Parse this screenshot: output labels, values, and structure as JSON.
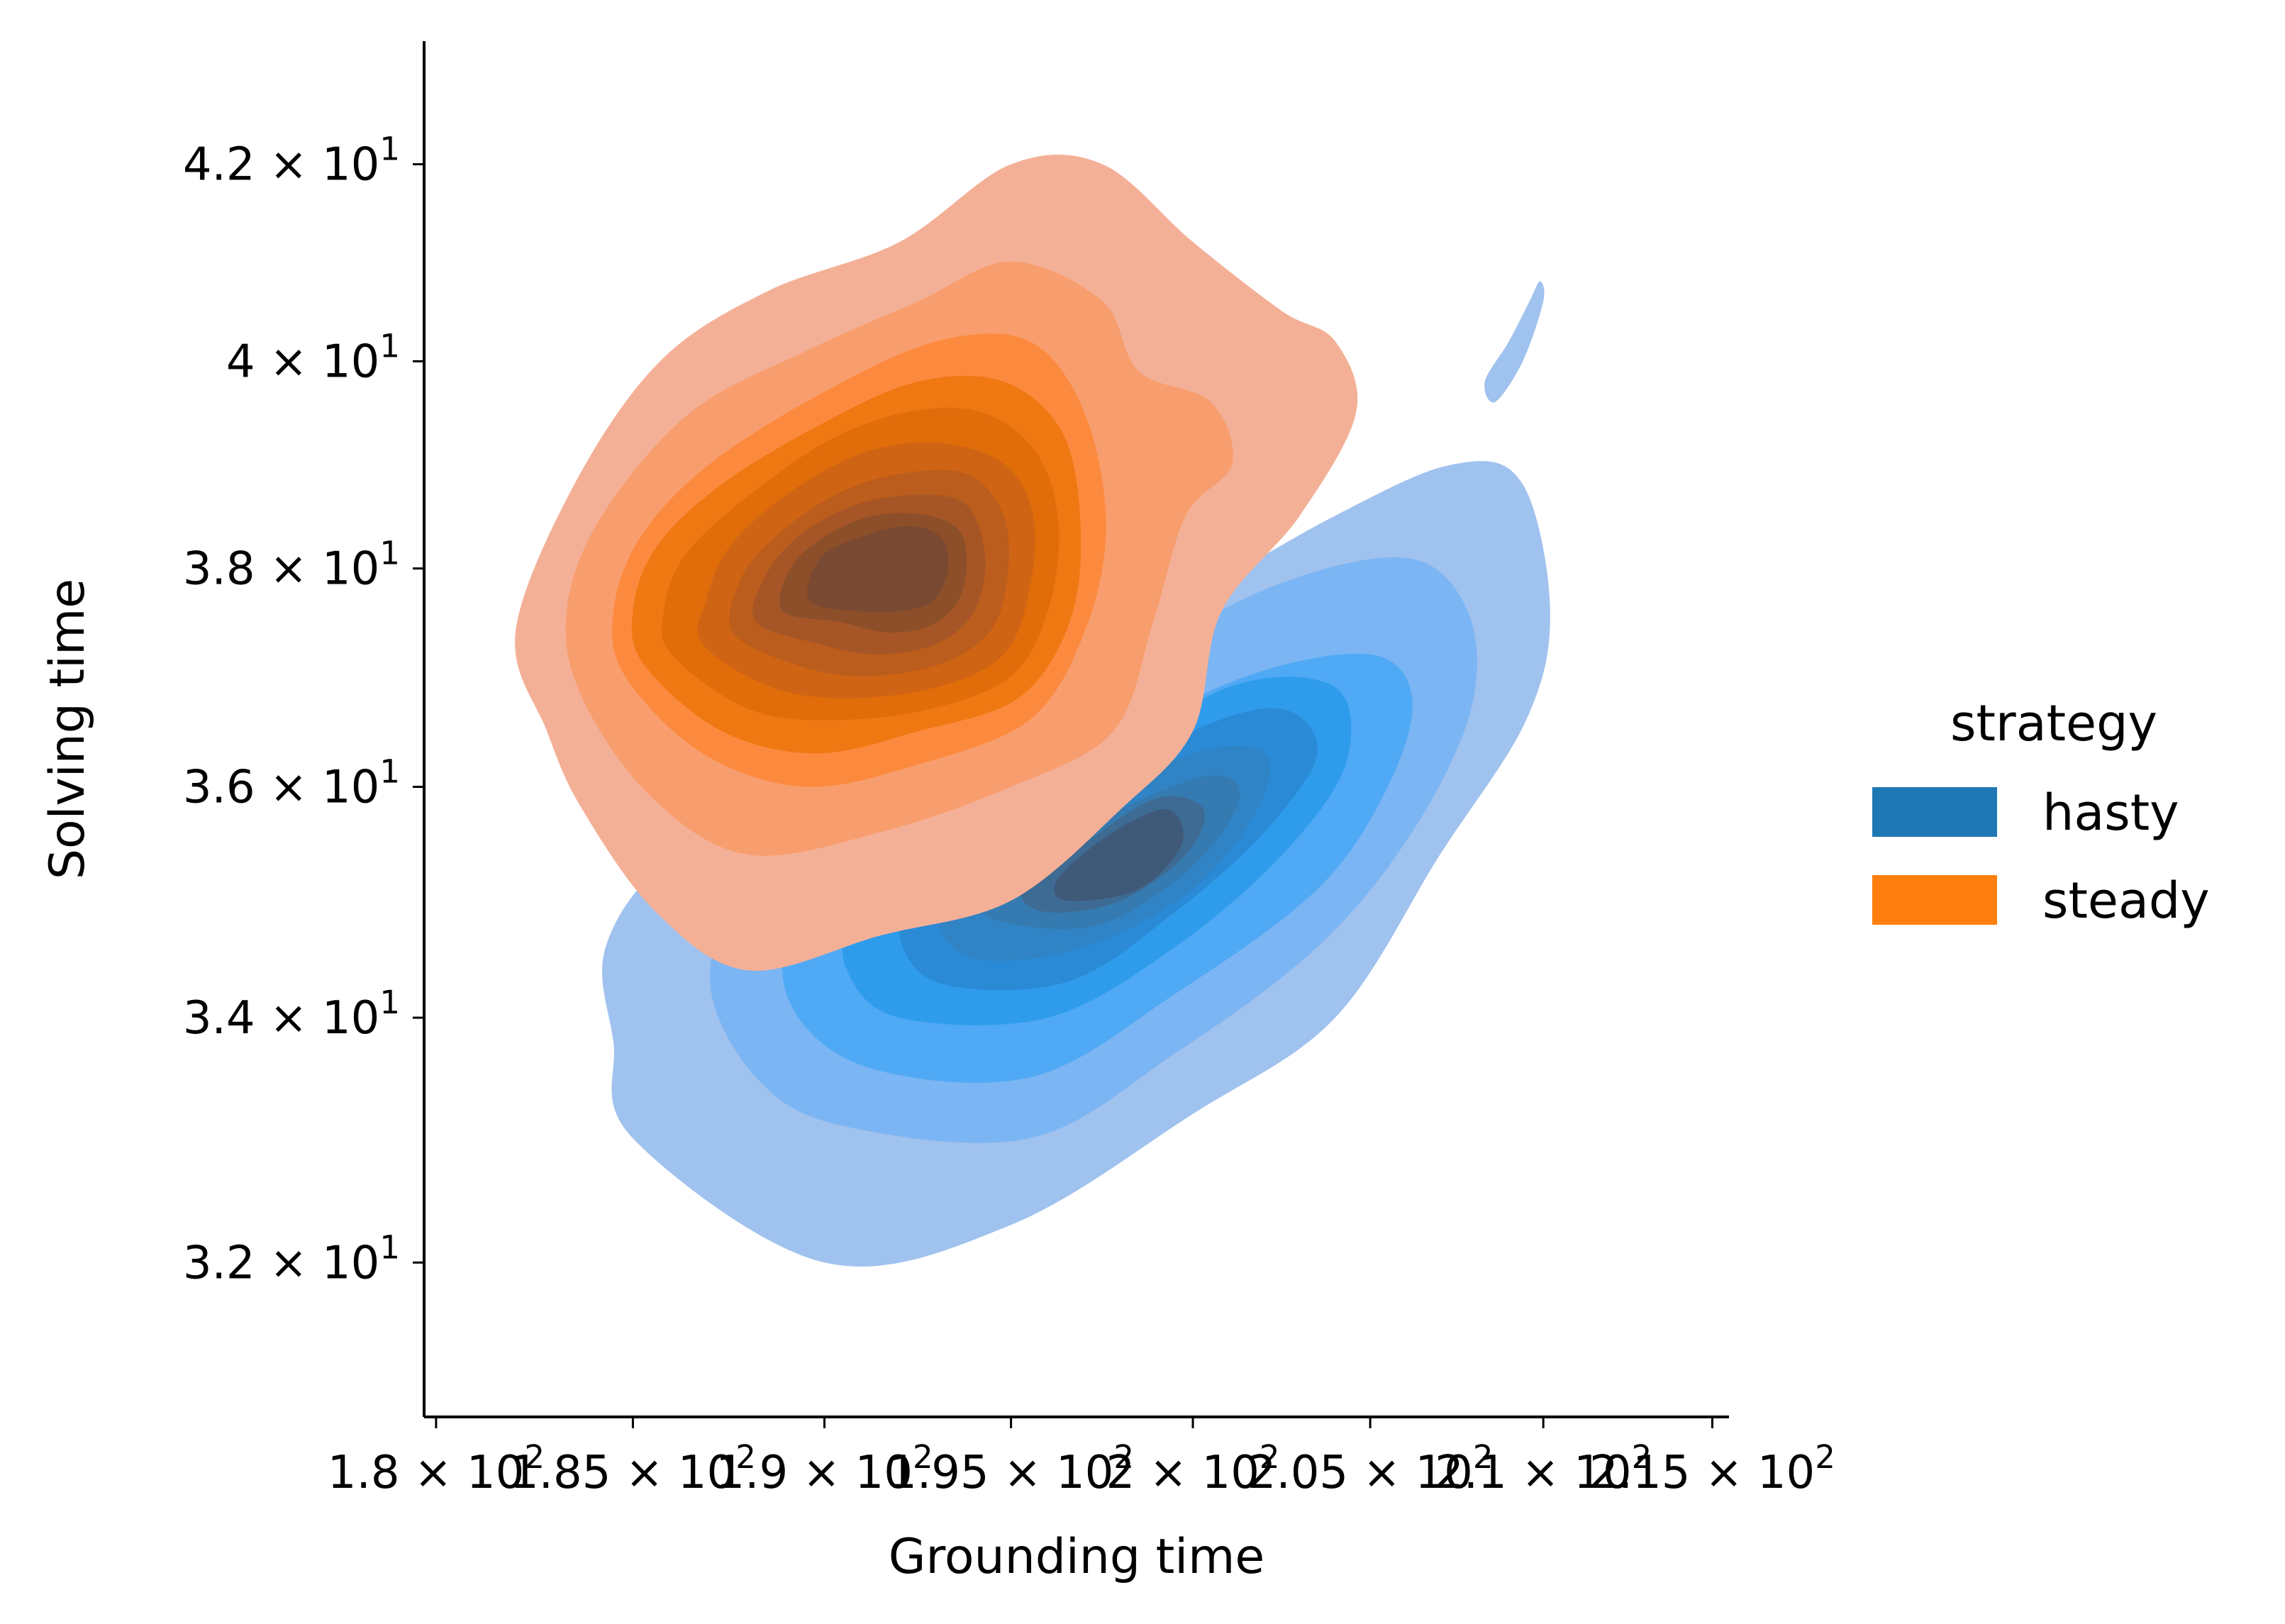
{
  "chart_data": {
    "type": "kde-contour",
    "title": "",
    "xlabel": "Grounding time",
    "ylabel": "Solving time",
    "x_scale": "log",
    "y_scale": "log",
    "xlim": [
      179.7,
      215.5
    ],
    "ylim": [
      30.8,
      43.3
    ],
    "x_ticks": [
      180,
      185,
      190,
      195,
      200,
      205,
      210,
      215
    ],
    "x_tick_labels": [
      {
        "mantissa": "1.8",
        "exponent": "2"
      },
      {
        "mantissa": "1.85",
        "exponent": "2"
      },
      {
        "mantissa": "1.9",
        "exponent": "2"
      },
      {
        "mantissa": "1.95",
        "exponent": "2"
      },
      {
        "mantissa": "2",
        "exponent": "2"
      },
      {
        "mantissa": "2.05",
        "exponent": "2"
      },
      {
        "mantissa": "2.1",
        "exponent": "2"
      },
      {
        "mantissa": "2.15",
        "exponent": "2"
      }
    ],
    "y_ticks": [
      32,
      34,
      36,
      38,
      40,
      42
    ],
    "y_tick_labels": [
      {
        "mantissa": "3.2",
        "exponent": "1"
      },
      {
        "mantissa": "3.4",
        "exponent": "1"
      },
      {
        "mantissa": "3.6",
        "exponent": "1"
      },
      {
        "mantissa": "3.8",
        "exponent": "1"
      },
      {
        "mantissa": "4",
        "exponent": "1"
      },
      {
        "mantissa": "4.2",
        "exponent": "1"
      }
    ],
    "times_symbol": "×",
    "tick_base": "10",
    "legend": {
      "title": "strategy",
      "placement": "right"
    },
    "series": [
      {
        "name": "hasty",
        "color": "#1f77b4",
        "fill_colors": [
          "#a0c2ee",
          "#7cb5f3",
          "#50a9f5",
          "#2e9ceb",
          "#2b8ad5",
          "#3083c4",
          "#357bb1",
          "#3e6b93",
          "#3f5979"
        ],
        "center": [
          197.5,
          35.3
        ],
        "contours": [
          [
            [
              185.0,
              33.0
            ],
            [
              190.0,
              32.0
            ],
            [
              195.0,
              32.3
            ],
            [
              200.0,
              33.2
            ],
            [
              204.0,
              34.0
            ],
            [
              207.0,
              35.4
            ],
            [
              209.5,
              36.6
            ],
            [
              210.2,
              37.6
            ],
            [
              209.4,
              38.8
            ],
            [
              207.5,
              39.0
            ],
            [
              204.0,
              38.5
            ],
            [
              197.0,
              37.2
            ],
            [
              190.0,
              36.3
            ],
            [
              186.0,
              35.4
            ],
            [
              184.3,
              34.6
            ],
            [
              184.5,
              33.8
            ]
          ],
          [
            [
              190.5,
              33.1
            ],
            [
              195.5,
              33.0
            ],
            [
              199.5,
              33.7
            ],
            [
              203.5,
              34.6
            ],
            [
              206.2,
              35.6
            ],
            [
              207.9,
              36.7
            ],
            [
              207.8,
              37.6
            ],
            [
              206.0,
              38.1
            ],
            [
              202.0,
              37.8
            ],
            [
              197.0,
              36.9
            ],
            [
              192.0,
              36.1
            ],
            [
              188.0,
              35.1
            ],
            [
              187.0,
              34.3
            ],
            [
              188.2,
              33.5
            ]
          ],
          [
            [
              191.0,
              33.6
            ],
            [
              195.5,
              33.5
            ],
            [
              199.5,
              34.2
            ],
            [
              203.5,
              35.1
            ],
            [
              205.5,
              36.0
            ],
            [
              206.2,
              36.8
            ],
            [
              205.0,
              37.2
            ],
            [
              201.5,
              37.0
            ],
            [
              197.0,
              36.3
            ],
            [
              192.5,
              35.6
            ],
            [
              189.5,
              35.0
            ],
            [
              189.0,
              34.2
            ]
          ],
          [
            [
              192.0,
              34.0
            ],
            [
              196.0,
              34.0
            ],
            [
              199.5,
              34.6
            ],
            [
              202.5,
              35.4
            ],
            [
              204.3,
              36.2
            ],
            [
              204.0,
              36.9
            ],
            [
              201.0,
              36.9
            ],
            [
              197.0,
              36.1
            ],
            [
              193.0,
              35.5
            ],
            [
              190.8,
              34.9
            ],
            [
              190.6,
              34.4
            ]
          ],
          [
            [
              193.0,
              34.3
            ],
            [
              196.5,
              34.3
            ],
            [
              199.5,
              34.9
            ],
            [
              202.0,
              35.6
            ],
            [
              203.5,
              36.3
            ],
            [
              202.5,
              36.7
            ],
            [
              200.0,
              36.5
            ],
            [
              196.5,
              35.8
            ],
            [
              193.5,
              35.2
            ],
            [
              192.0,
              34.8
            ]
          ],
          [
            [
              194.0,
              34.5
            ],
            [
              197.0,
              34.6
            ],
            [
              200.0,
              35.1
            ],
            [
              201.8,
              35.8
            ],
            [
              202.0,
              36.3
            ],
            [
              200.0,
              36.3
            ],
            [
              197.0,
              35.8
            ],
            [
              194.5,
              35.3
            ],
            [
              193.0,
              34.9
            ]
          ],
          [
            [
              195.0,
              34.8
            ],
            [
              197.5,
              34.8
            ],
            [
              200.0,
              35.3
            ],
            [
              201.3,
              35.9
            ],
            [
              200.5,
              36.1
            ],
            [
              198.0,
              35.8
            ],
            [
              195.5,
              35.3
            ],
            [
              194.0,
              35.0
            ]
          ],
          [
            [
              196.0,
              34.9
            ],
            [
              198.0,
              35.0
            ],
            [
              199.8,
              35.4
            ],
            [
              200.3,
              35.8
            ],
            [
              199.0,
              35.9
            ],
            [
              197.0,
              35.5
            ],
            [
              195.3,
              35.1
            ]
          ],
          [
            [
              196.5,
              35.0
            ],
            [
              198.5,
              35.1
            ],
            [
              199.7,
              35.5
            ],
            [
              199.3,
              35.8
            ],
            [
              197.8,
              35.6
            ],
            [
              196.3,
              35.2
            ]
          ]
        ],
        "islands": [
          [
            [
              208.3,
              39.8
            ],
            [
              209.0,
              40.2
            ],
            [
              209.6,
              40.6
            ],
            [
              209.9,
              40.8
            ],
            [
              210.0,
              40.6
            ],
            [
              209.4,
              40.0
            ],
            [
              208.6,
              39.6
            ]
          ]
        ]
      },
      {
        "name": "steady",
        "color": "#ff7f0e",
        "fill_colors": [
          "#f4b097",
          "#f89e6e",
          "#fc8a3e",
          "#ef7813",
          "#e06c0a",
          "#ce6414",
          "#bb5d1c",
          "#a65626",
          "#8c4f2a",
          "#7a4931"
        ],
        "center": [
          191.5,
          37.9
        ],
        "contours": [
          [
            [
              182.8,
              36.5
            ],
            [
              183.7,
              35.8
            ],
            [
              185.6,
              34.9
            ],
            [
              188.0,
              34.4
            ],
            [
              191.5,
              34.7
            ],
            [
              195.0,
              35.0
            ],
            [
              198.0,
              35.8
            ],
            [
              200.0,
              36.5
            ],
            [
              200.8,
              37.6
            ],
            [
              203.0,
              38.5
            ],
            [
              204.6,
              39.5
            ],
            [
              204.0,
              40.2
            ],
            [
              202.5,
              40.5
            ],
            [
              200.0,
              41.2
            ],
            [
              197.5,
              42.0
            ],
            [
              195.0,
              42.0
            ],
            [
              192.0,
              41.2
            ],
            [
              188.5,
              40.7
            ],
            [
              185.7,
              40.0
            ],
            [
              183.5,
              38.8
            ],
            [
              182.0,
              37.4
            ]
          ],
          [
            [
              183.7,
              36.8
            ],
            [
              185.5,
              35.9
            ],
            [
              188.0,
              35.4
            ],
            [
              191.5,
              35.6
            ],
            [
              195.0,
              36.0
            ],
            [
              197.8,
              36.5
            ],
            [
              198.9,
              37.5
            ],
            [
              199.8,
              38.5
            ],
            [
              201.1,
              39.0
            ],
            [
              200.5,
              39.6
            ],
            [
              198.5,
              39.9
            ],
            [
              197.5,
              40.6
            ],
            [
              195.0,
              41.0
            ],
            [
              192.5,
              40.6
            ],
            [
              189.5,
              40.1
            ],
            [
              186.5,
              39.5
            ],
            [
              184.2,
              38.5
            ],
            [
              183.3,
              37.6
            ]
          ],
          [
            [
              184.8,
              37.0
            ],
            [
              186.8,
              36.3
            ],
            [
              189.5,
              36.0
            ],
            [
              192.5,
              36.2
            ],
            [
              195.5,
              36.6
            ],
            [
              197.0,
              37.4
            ],
            [
              197.6,
              38.4
            ],
            [
              197.0,
              39.5
            ],
            [
              195.5,
              40.2
            ],
            [
              193.0,
              40.2
            ],
            [
              190.0,
              39.7
            ],
            [
              187.0,
              39.0
            ],
            [
              185.2,
              38.3
            ],
            [
              184.5,
              37.6
            ]
          ],
          [
            [
              185.3,
              37.1
            ],
            [
              187.3,
              36.5
            ],
            [
              189.8,
              36.3
            ],
            [
              192.5,
              36.5
            ],
            [
              195.2,
              36.8
            ],
            [
              196.6,
              37.5
            ],
            [
              196.9,
              38.4
            ],
            [
              196.4,
              39.3
            ],
            [
              194.8,
              39.8
            ],
            [
              192.5,
              39.8
            ],
            [
              190.0,
              39.4
            ],
            [
              187.3,
              38.8
            ],
            [
              185.6,
              38.2
            ],
            [
              185.0,
              37.6
            ]
          ],
          [
            [
              186.0,
              37.2
            ],
            [
              188.0,
              36.7
            ],
            [
              190.2,
              36.6
            ],
            [
              192.8,
              36.7
            ],
            [
              195.0,
              37.0
            ],
            [
              196.0,
              37.6
            ],
            [
              196.3,
              38.4
            ],
            [
              195.7,
              39.1
            ],
            [
              194.2,
              39.5
            ],
            [
              192.2,
              39.5
            ],
            [
              190.0,
              39.2
            ],
            [
              187.7,
              38.6
            ],
            [
              186.3,
              38.1
            ],
            [
              185.8,
              37.6
            ]
          ],
          [
            [
              186.8,
              37.3
            ],
            [
              188.6,
              36.9
            ],
            [
              190.6,
              36.8
            ],
            [
              193.0,
              36.9
            ],
            [
              194.8,
              37.2
            ],
            [
              195.5,
              37.8
            ],
            [
              195.6,
              38.5
            ],
            [
              194.8,
              39.0
            ],
            [
              193.0,
              39.2
            ],
            [
              191.0,
              39.1
            ],
            [
              189.0,
              38.7
            ],
            [
              187.5,
              38.2
            ],
            [
              186.9,
              37.7
            ]
          ],
          [
            [
              187.6,
              37.4
            ],
            [
              189.3,
              37.1
            ],
            [
              191.0,
              37.0
            ],
            [
              193.0,
              37.1
            ],
            [
              194.4,
              37.4
            ],
            [
              194.9,
              37.9
            ],
            [
              194.8,
              38.5
            ],
            [
              193.8,
              38.9
            ],
            [
              192.0,
              38.9
            ],
            [
              190.3,
              38.7
            ],
            [
              188.7,
              38.3
            ],
            [
              187.8,
              37.9
            ]
          ],
          [
            [
              188.2,
              37.5
            ],
            [
              189.8,
              37.3
            ],
            [
              191.4,
              37.2
            ],
            [
              193.0,
              37.3
            ],
            [
              194.0,
              37.6
            ],
            [
              194.3,
              38.1
            ],
            [
              193.8,
              38.6
            ],
            [
              192.5,
              38.7
            ],
            [
              190.8,
              38.6
            ],
            [
              189.3,
              38.3
            ],
            [
              188.4,
              37.9
            ]
          ],
          [
            [
              188.9,
              37.6
            ],
            [
              190.4,
              37.5
            ],
            [
              191.8,
              37.4
            ],
            [
              193.0,
              37.5
            ],
            [
              193.7,
              37.8
            ],
            [
              193.7,
              38.3
            ],
            [
              192.8,
              38.5
            ],
            [
              191.3,
              38.5
            ],
            [
              190.0,
              38.3
            ],
            [
              189.1,
              38.0
            ]
          ],
          [
            [
              189.6,
              37.7
            ],
            [
              190.9,
              37.6
            ],
            [
              192.0,
              37.6
            ],
            [
              192.9,
              37.7
            ],
            [
              193.3,
              38.0
            ],
            [
              193.1,
              38.3
            ],
            [
              192.2,
              38.4
            ],
            [
              191.0,
              38.3
            ],
            [
              189.9,
              38.1
            ]
          ]
        ],
        "islands": []
      }
    ]
  }
}
